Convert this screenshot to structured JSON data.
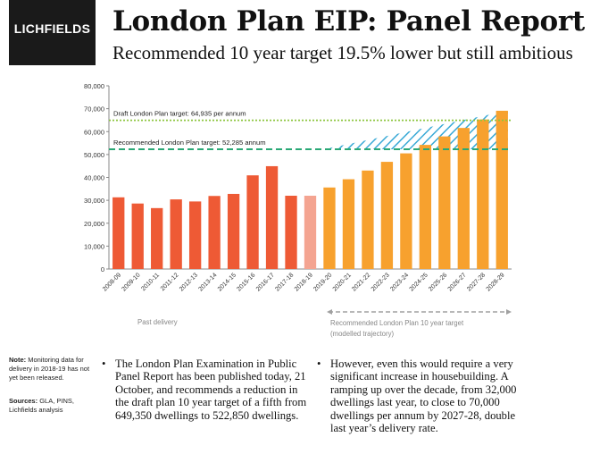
{
  "header": {
    "logo": "LICHFIELDS",
    "title": "London Plan EIP: Panel Report",
    "subtitle": "Recommended 10 year target 19.5% lower but still ambitious"
  },
  "chart_data": {
    "type": "bar",
    "categories": [
      "2008-09",
      "2009-10",
      "2010-11",
      "2011-12",
      "2012-13",
      "2013-14",
      "2014-15",
      "2015-16",
      "2016-17",
      "2017-18",
      "2018-19",
      "2019-20",
      "2020-21",
      "2021-22",
      "2022-23",
      "2023-24",
      "2024-25",
      "2025-26",
      "2026-27",
      "2027-28",
      "2028-29"
    ],
    "values": [
      31300,
      28600,
      26600,
      30400,
      29500,
      31900,
      32800,
      40900,
      44900,
      32000,
      32000,
      35600,
      39200,
      43000,
      46800,
      50500,
      54200,
      57900,
      61600,
      65300,
      69100
    ],
    "bar_kinds": [
      "past",
      "past",
      "past",
      "past",
      "past",
      "past",
      "past",
      "past",
      "past",
      "past",
      "unreleased",
      "projected",
      "projected",
      "projected",
      "projected",
      "projected",
      "projected",
      "projected",
      "projected",
      "projected",
      "projected"
    ],
    "colors": {
      "past": "#ee5a35",
      "unreleased": "#f4a491",
      "projected": "#f7a12e",
      "hatch": "#39a9d6",
      "draft_line": "#8dc63f",
      "rec_line": "#2aa876"
    },
    "ylim": [
      0,
      80000
    ],
    "yticks": [
      0,
      10000,
      20000,
      30000,
      40000,
      50000,
      60000,
      70000,
      80000
    ],
    "ytick_labels": [
      "0",
      "10,000",
      "20,000",
      "30,000",
      "40,000",
      "50,000",
      "60,000",
      "70,000",
      "80,000"
    ],
    "reference_lines": [
      {
        "value": 64935,
        "label": "Draft London Plan target: 64,935 per annum"
      },
      {
        "value": 52285,
        "label": "Recommended London Plan target: 52,285 annum"
      }
    ],
    "hatched_region": {
      "from": "2019-20",
      "to": "2028-29",
      "upper": 69100,
      "lower_start": 52285
    },
    "annotations": {
      "past": "Past delivery",
      "projected_line1": "Recommended  London Plan 10 year target",
      "projected_line2": "(modelled trajectory)"
    }
  },
  "notes": {
    "note_label": "Note:",
    "note_text": " Monitoring data for delivery in 2018-19 has not yet been released.",
    "sources_label": "Sources:",
    "sources_text": "   GLA,   PINS, Lichfields analysis"
  },
  "bullets": [
    {
      "marker": "•",
      "text": "The London Plan Examination in Public Panel Report has been published today, 21 October, and recommends a reduction in the draft plan 10 year target of a fifth from 649,350 dwellings to 522,850 dwellings."
    },
    {
      "marker": "•",
      "text": "However, even this would require a very significant increase in housebuilding. A ramping up over the decade, from 32,000 dwellings last year, to close to 70,000 dwellings per annum by 2027-28, double last year’s delivery rate."
    }
  ]
}
